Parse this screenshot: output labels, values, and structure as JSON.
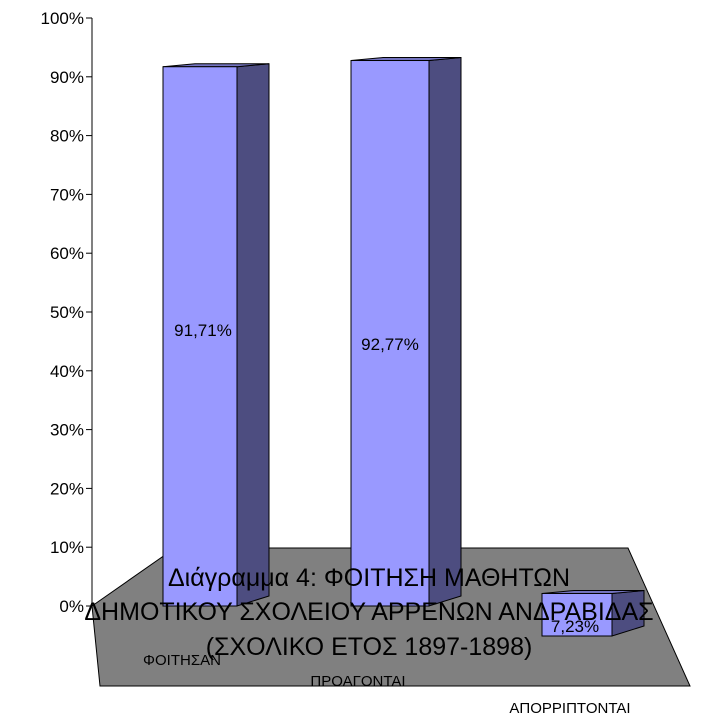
{
  "chart_data": {
    "type": "bar",
    "title_lines": [
      "Διάγραμμα 4: ΦΟΙΤΗΣΗ ΜΑΘΗΤΩΝ",
      "ΔΗΜΟΤΙΚΟΥ ΣΧΟΛΕΙΟΥ ΑΡΡΕΝΩΝ ΑΝΔΡΑΒΙΔΑΣ",
      "(ΣΧΟΛΙΚΟ ΕΤΟΣ 1897-1898)"
    ],
    "categories": [
      "ΦΟΙΤΗΣΑΝ",
      "ΠΡΟΑΓΟΝΤΑΙ",
      "ΑΠΟΡΡΙΠΤΟΝΤΑΙ"
    ],
    "values": [
      91.71,
      92.77,
      7.23
    ],
    "data_labels": [
      "91,71%",
      "92,77%",
      "7,23%"
    ],
    "yticks": [
      "0%",
      "10%",
      "20%",
      "30%",
      "40%",
      "50%",
      "60%",
      "70%",
      "80%",
      "90%",
      "100%"
    ],
    "ylim": [
      0,
      100
    ],
    "grid": false,
    "legend": "none",
    "colors": {
      "bar_front": "#9999ff",
      "bar_side": "#4d4d80",
      "bar_top": "#7373bf",
      "floor": "#808080",
      "axis": "#000000"
    }
  }
}
